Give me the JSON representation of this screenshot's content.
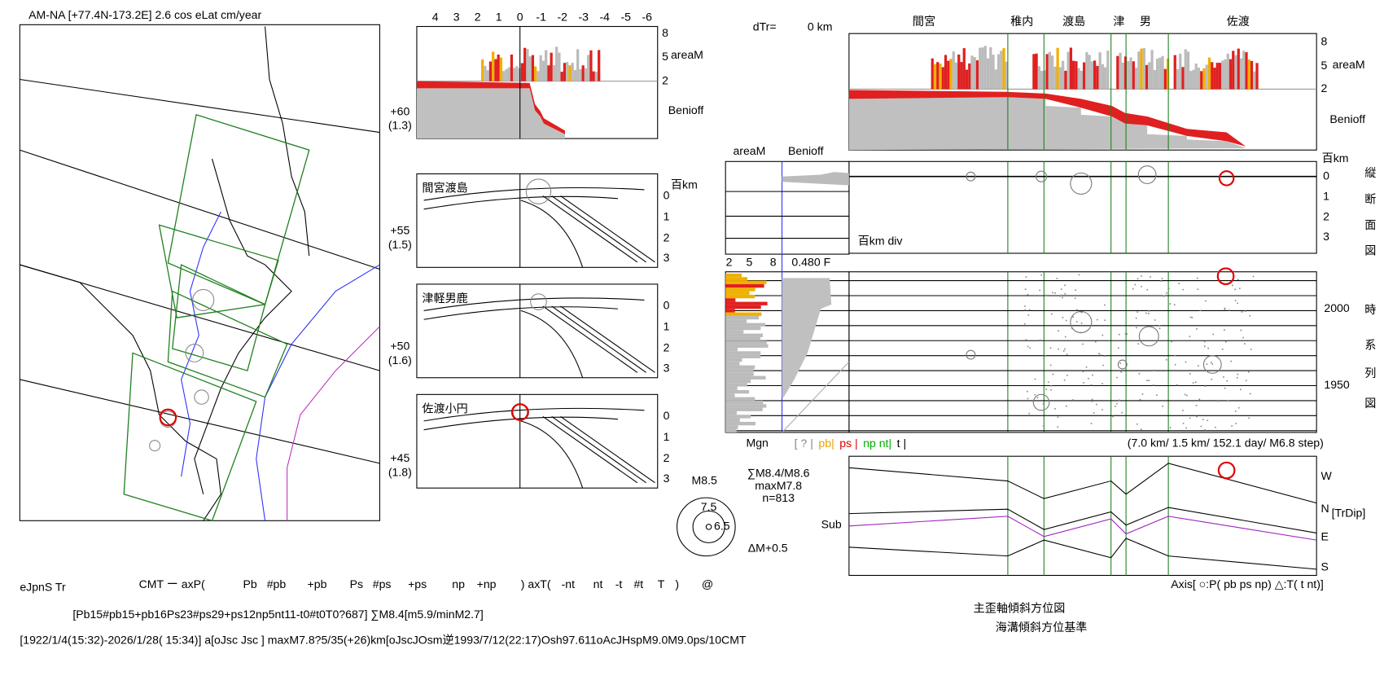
{
  "map": {
    "title": "AM-NA [+77.4N-173.2E] 2.6 cos eLat cm/year",
    "lat_labels": [
      [
        "+60",
        "(1.3)"
      ],
      [
        "+55",
        "(1.5)"
      ],
      [
        "+50",
        "(1.6)"
      ],
      [
        "+45",
        "(1.8)"
      ]
    ]
  },
  "profile": {
    "top_ticks": [
      "4",
      "3",
      "2",
      "1",
      "0",
      "-1",
      "-2",
      "-3",
      "-4",
      "-5",
      "-6"
    ],
    "right_ticks": [
      "8",
      "5",
      "2"
    ],
    "area_label": "areaM",
    "benioff_label": "Benioff"
  },
  "sections": [
    {
      "label": "間宮渡島",
      "unit": "百km",
      "depths": [
        "0",
        "1",
        "2",
        "3"
      ]
    },
    {
      "label": "津軽男鹿",
      "depths": [
        "0",
        "1",
        "2",
        "3"
      ]
    },
    {
      "label": "佐渡小円",
      "depths": [
        "0",
        "1",
        "2",
        "3"
      ]
    }
  ],
  "magnitude": {
    "m1": "M8.5",
    "m2": "7.5",
    "m3": "6.5",
    "step": "ΔM+0.5",
    "stats": [
      "∑M8.4/M8.6",
      "maxM7.8",
      "n=813"
    ]
  },
  "right": {
    "dtr": "dTr=",
    "dtr_value": "0 km",
    "places": [
      "間宮",
      "稚内",
      "渡島",
      "津",
      "男",
      "佐渡"
    ],
    "top_ticks": [
      "8",
      "5",
      "2"
    ],
    "area_label": "areaM",
    "benioff_label": "Benioff",
    "depth_unit": "百km",
    "depths": [
      "0",
      "1",
      "2",
      "3"
    ],
    "section_title": [
      "縦",
      "断",
      "面",
      "図"
    ],
    "time_title": [
      "時",
      "系",
      "列",
      "図"
    ],
    "side_area": "areaM",
    "side_benioff": "Benioff",
    "div_label": "百km div",
    "side_ticks": [
      "2",
      "5",
      "8"
    ],
    "side_f": "0.480 F",
    "years": [
      "2000",
      "1950"
    ],
    "mgn": "Mgn",
    "legend": [
      {
        "text": "[ ? |",
        "color": "#888888"
      },
      {
        "text": "pb|",
        "color": "#f0a000"
      },
      {
        "text": "ps |",
        "color": "#e00000"
      },
      {
        "text": "np nt|",
        "color": "#00b000"
      },
      {
        "text": "t |",
        "color": "#000000"
      }
    ],
    "step_text": "(7.0 km/ 1.5 km/ 152.1 day/ M6.8 step)",
    "tilt_labels": [
      "W",
      "N",
      "E",
      "S"
    ],
    "tilt_sub": "[TrDip]",
    "sub_label": "Sub",
    "axis_text": "Axis[ ○:P( pb ps np) △:T( t nt)]",
    "caption": "主歪軸傾斜方位図",
    "caption_sub": "海溝傾斜方位基準"
  },
  "footer": {
    "name": "eJpnS Tr",
    "cmt": [
      {
        "text": "CMT ー axP(",
        "color": "#000000"
      },
      {
        "text": "Pb",
        "color": "#e000e0"
      },
      {
        "text": "#pb",
        "color": "#f0a000"
      },
      {
        "text": "+pb",
        "color": "#f0a000"
      },
      {
        "text": "Ps",
        "color": "#e000e0"
      },
      {
        "text": "#ps",
        "color": "#e00000"
      },
      {
        "text": "+ps",
        "color": "#e00000"
      },
      {
        "text": "np",
        "color": "#00b000"
      },
      {
        "text": "+np",
        "color": "#00b000"
      },
      {
        "text": ") axT(",
        "color": "#000000"
      },
      {
        "text": "-nt",
        "color": "#00b0e0"
      },
      {
        "text": "nt",
        "color": "#00b0e0"
      },
      {
        "text": "-t",
        "color": "#8000c0"
      },
      {
        "text": "#t",
        "color": "#000000"
      },
      {
        "text": "T",
        "color": "#0000e0"
      },
      {
        "text": ")",
        "color": "#000000"
      },
      {
        "text": "@",
        "color": "#000000"
      }
    ],
    "line2": "[Pb15#pb15+pb16Ps23#ps29+ps12np5nt11-t0#t0T0?687] ∑M8.4[m5.9/minM2.7]",
    "line3": "[1922/1/4(15:32)-2026/1/28( 15:34)] a[oJsc Jsc ] maxM7.8?5/35(+26)km[oJscJOsm逆1993/7/12(22:17)Osh97.611oAcJHspM9.0M9.0ps/10CMT"
  }
}
